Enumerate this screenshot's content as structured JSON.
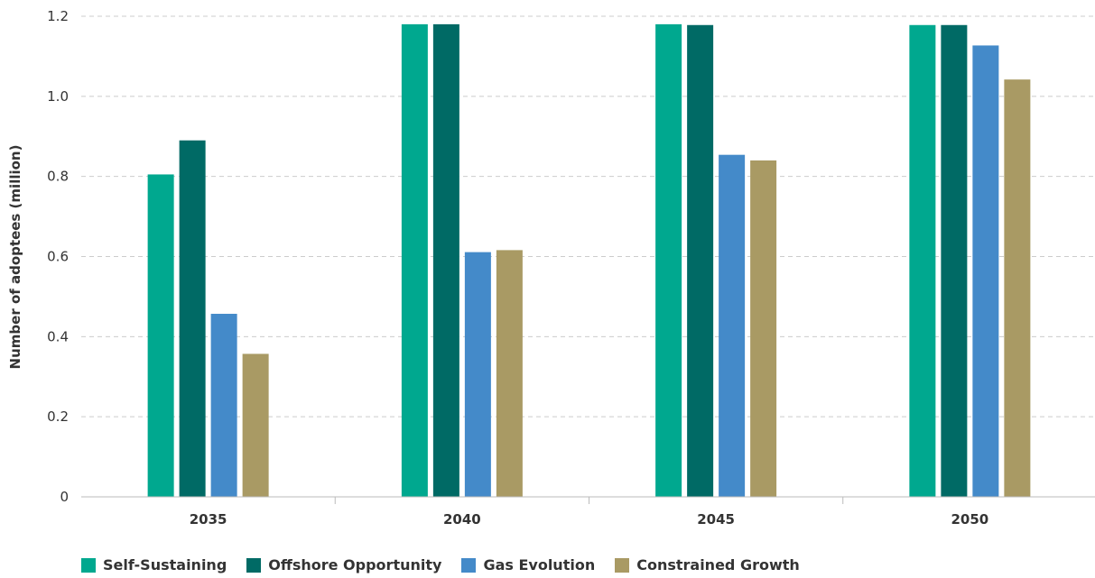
{
  "chart_data": {
    "type": "bar",
    "categories": [
      "2035",
      "2040",
      "2045",
      "2050"
    ],
    "series": [
      {
        "name": "Self-Sustaining",
        "color": "#00a88f",
        "values": [
          0.805,
          1.18,
          1.18,
          1.178
        ]
      },
      {
        "name": "Offshore Opportunity",
        "color": "#006a65",
        "values": [
          0.89,
          1.18,
          1.178,
          1.178
        ]
      },
      {
        "name": "Gas Evolution",
        "color": "#448ac9",
        "values": [
          0.457,
          0.611,
          0.854,
          1.127
        ]
      },
      {
        "name": "Constrained Growth",
        "color": "#a99a64",
        "values": [
          0.357,
          0.616,
          0.84,
          1.042
        ]
      }
    ],
    "ylabel": "Number of adoptees (million)",
    "xlabel": "",
    "ylim": [
      0,
      1.2
    ],
    "yticks": [
      "0",
      "0.2",
      "0.4",
      "0.6",
      "0.8",
      "1.0",
      "1.2"
    ],
    "grid": "horizontal dashed",
    "legend_position": "bottom-left"
  }
}
